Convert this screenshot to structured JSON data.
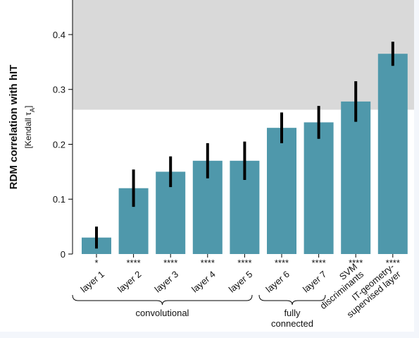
{
  "chart_data": {
    "type": "bar",
    "y_label": "RDM correlation with hIT",
    "y_sublabel": [
      "[Kendall τ",
      "A",
      "]"
    ],
    "categories": [
      [
        "layer 1"
      ],
      [
        "layer 2"
      ],
      [
        "layer 3"
      ],
      [
        "layer 4"
      ],
      [
        "layer 5"
      ],
      [
        "layer 6"
      ],
      [
        "layer 7"
      ],
      [
        "SVM",
        "discriminants"
      ],
      [
        "IT-geometry-",
        "supervised layer"
      ]
    ],
    "series": [
      {
        "color": "#4f98ab",
        "values": [
          0.03,
          0.12,
          0.15,
          0.17,
          0.17,
          0.23,
          0.24,
          0.278,
          0.365
        ],
        "errors": [
          0.02,
          0.034,
          0.028,
          0.032,
          0.035,
          0.028,
          0.03,
          0.037,
          0.022
        ]
      }
    ],
    "significance": [
      "*",
      "****",
      "****",
      "****",
      "****",
      "****",
      "****",
      "****",
      "****"
    ],
    "group_labels": [
      [
        "convolutional"
      ],
      [
        "fully",
        "connected"
      ]
    ],
    "shaded_band": {
      "range": [
        0.263,
        0.463
      ],
      "color": "#d9d9d9"
    },
    "ylim": [
      0,
      0.463
    ],
    "yticks": [
      0,
      0.1,
      0.2,
      0.3,
      0.4
    ]
  }
}
